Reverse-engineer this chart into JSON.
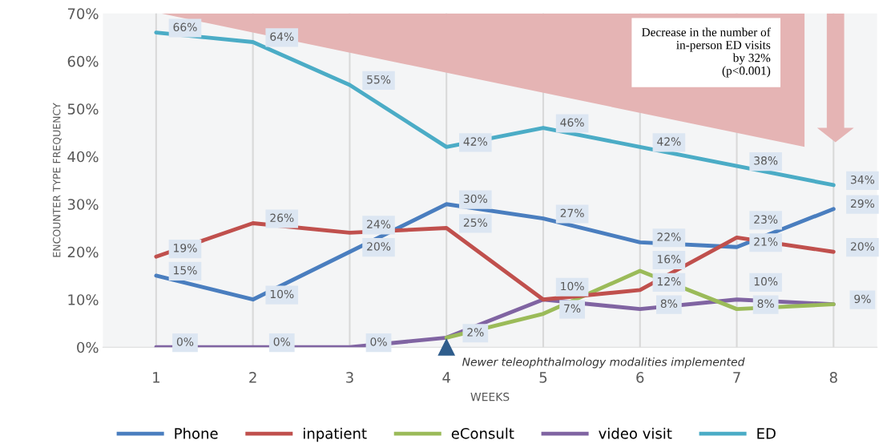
{
  "chart_data": {
    "type": "line",
    "categories": [
      "1",
      "2",
      "3",
      "4",
      "5",
      "6",
      "7",
      "8"
    ],
    "xlabel": "WEEKS",
    "ylabel": "ENCOUNTER TYPE FREQUENCY",
    "ylim": [
      0,
      70
    ],
    "yticks": [
      {
        "value": 0,
        "label": "0%"
      },
      {
        "value": 10,
        "label": "10%"
      },
      {
        "value": 20,
        "label": "20%"
      },
      {
        "value": 30,
        "label": "30%"
      },
      {
        "value": 40,
        "label": "40%"
      },
      {
        "value": 50,
        "label": "50%"
      },
      {
        "value": 60,
        "label": "60%"
      },
      {
        "value": 70,
        "label": "70%"
      }
    ],
    "grid": "x",
    "legend": "bottom",
    "marker": "none",
    "line_style": "solid",
    "series": [
      {
        "name": "Phone",
        "color": "#4a7ebf",
        "values": [
          15,
          10,
          20,
          30,
          27,
          22,
          21,
          29
        ],
        "value_labels": [
          "15%",
          "10%",
          "20%",
          "30%",
          "27%",
          "22%",
          "21%",
          "29%"
        ]
      },
      {
        "name": "inpatient",
        "color": "#c0504d",
        "values": [
          19,
          26,
          24,
          25,
          10,
          12,
          23,
          20
        ],
        "value_labels": [
          "19%",
          "26%",
          "24%",
          "25%",
          "10%",
          "12%",
          "23%",
          "20%"
        ]
      },
      {
        "name": "eConsult",
        "color": "#9bbb59",
        "values": [
          null,
          null,
          null,
          2,
          7,
          16,
          8,
          9
        ],
        "value_labels": [
          null,
          null,
          null,
          null,
          "7%",
          "16%",
          "8%",
          null
        ]
      },
      {
        "name": "video visit",
        "color": "#8064a2",
        "values": [
          0,
          0,
          0,
          2,
          10,
          8,
          10,
          9
        ],
        "value_labels": [
          "0%",
          "0%",
          "0%",
          "2%",
          null,
          "8%",
          "10%",
          "9%"
        ]
      },
      {
        "name": "ED",
        "color": "#4bacc6",
        "values": [
          66,
          64,
          55,
          42,
          46,
          42,
          38,
          34
        ],
        "value_labels": [
          "66%",
          "64%",
          "55%",
          "42%",
          "46%",
          "42%",
          "38%",
          "34%"
        ]
      }
    ],
    "annotations": [
      "Decrease in the number of\nin-person ED visits\nby 32%\n(p<0.001)",
      {
        "text": "Newer teleophthalmology modalities implemented",
        "x": "4",
        "y": 0
      }
    ]
  }
}
